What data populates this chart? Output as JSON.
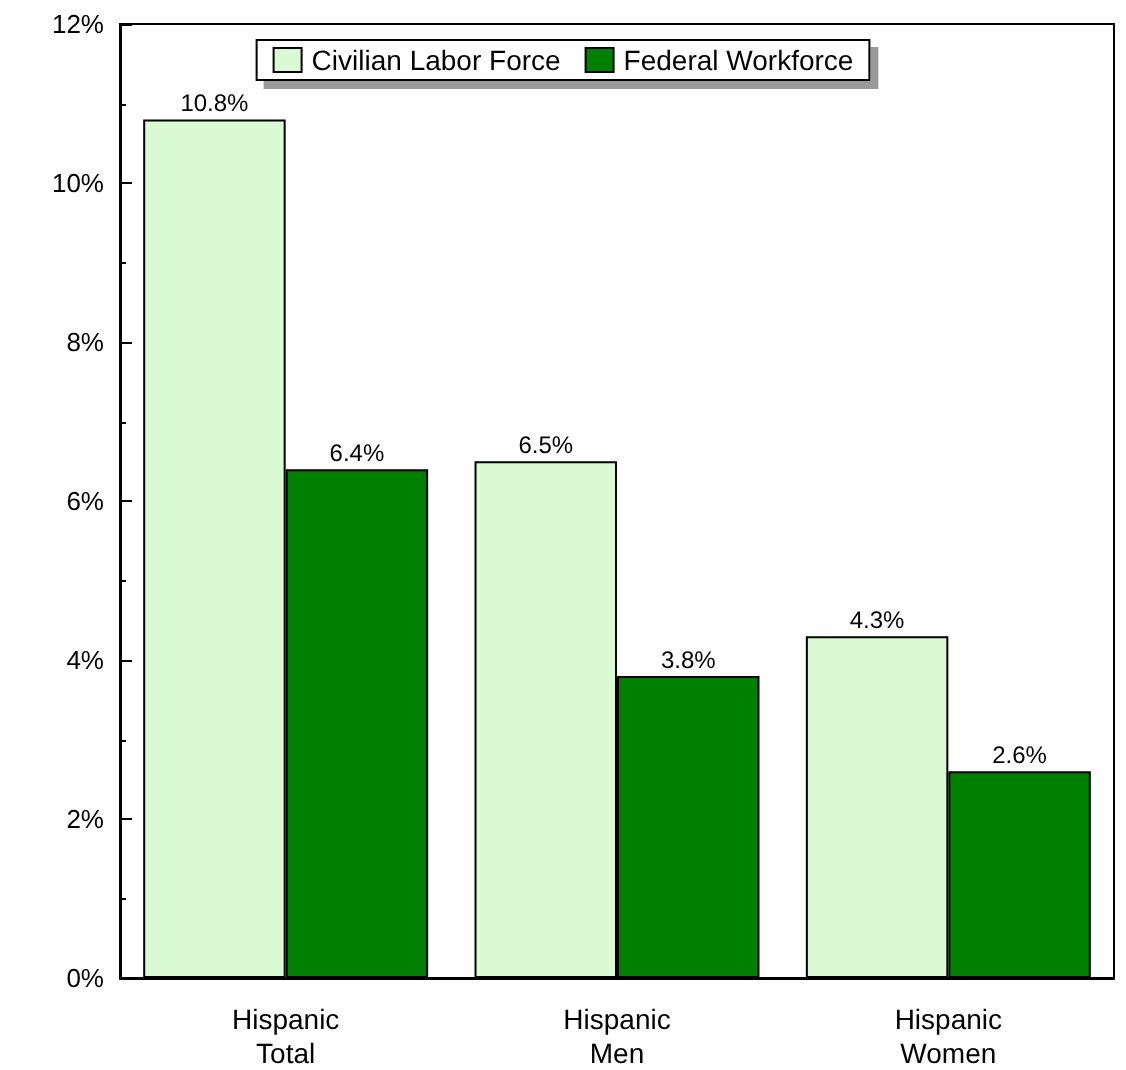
{
  "chart_data": {
    "type": "bar",
    "categories": [
      "Hispanic\nTotal",
      "Hispanic\nMen",
      "Hispanic\nWomen"
    ],
    "series": [
      {
        "name": "Civilian Labor Force",
        "color": "#d9fad2",
        "values": [
          10.8,
          6.5,
          4.3
        ],
        "value_labels": [
          "10.8%",
          "6.5%",
          "4.3%"
        ]
      },
      {
        "name": "Federal Workforce",
        "color": "#008000",
        "values": [
          6.4,
          3.8,
          2.6
        ],
        "value_labels": [
          "6.4%",
          "3.8%",
          "2.6%"
        ]
      }
    ],
    "ylim": [
      0,
      12
    ],
    "yticks": [
      {
        "value": 0,
        "label": "0%"
      },
      {
        "value": 2,
        "label": "2%"
      },
      {
        "value": 4,
        "label": "4%"
      },
      {
        "value": 6,
        "label": "6%"
      },
      {
        "value": 8,
        "label": "8%"
      },
      {
        "value": 10,
        "label": "10%"
      },
      {
        "value": 12,
        "label": "12%"
      }
    ],
    "grid": false,
    "legend": "top"
  }
}
